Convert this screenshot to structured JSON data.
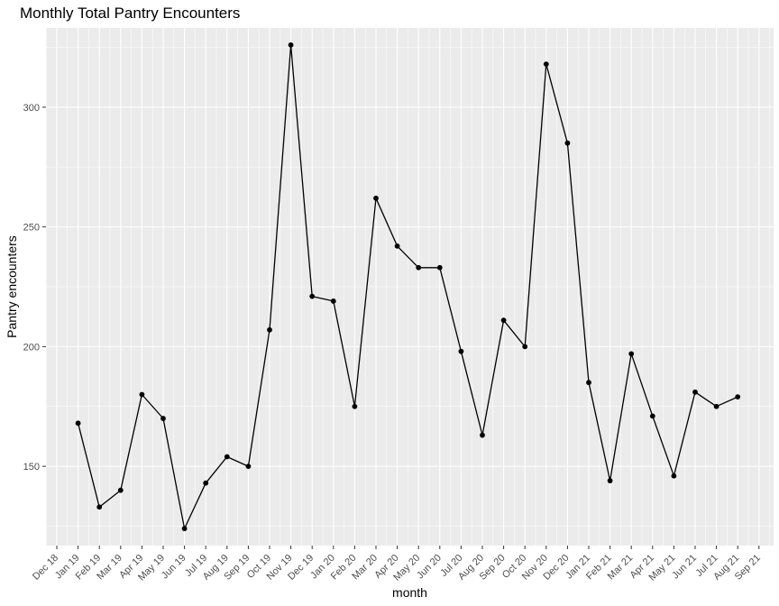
{
  "chart_data": {
    "type": "line",
    "title": "Monthly Total Pantry Encounters",
    "xlabel": "month",
    "ylabel": "Pantry encounters",
    "x_tick_labels": [
      "Dec 18",
      "Jan 19",
      "Feb 19",
      "Mar 19",
      "Apr 19",
      "May 19",
      "Jun 19",
      "Jul 19",
      "Aug 19",
      "Sep 19",
      "Oct 19",
      "Nov 19",
      "Dec 19",
      "Jan 20",
      "Feb 20",
      "Mar 20",
      "Apr 20",
      "May 20",
      "Jun 20",
      "Jul 20",
      "Aug 20",
      "Sep 20",
      "Oct 20",
      "Nov 20",
      "Dec 20",
      "Jan 21",
      "Feb 21",
      "Mar 21",
      "Apr 21",
      "May 21",
      "Jun 21",
      "Jul 21",
      "Aug 21",
      "Sep 21"
    ],
    "categories": [
      "Jan 19",
      "Feb 19",
      "Mar 19",
      "Apr 19",
      "May 19",
      "Jun 19",
      "Jul 19",
      "Aug 19",
      "Sep 19",
      "Oct 19",
      "Nov 19",
      "Dec 19",
      "Jan 20",
      "Feb 20",
      "Mar 20",
      "Apr 20",
      "May 20",
      "Jun 20",
      "Jul 20",
      "Aug 20",
      "Sep 20",
      "Oct 20",
      "Nov 20",
      "Dec 20",
      "Jan 21",
      "Feb 21",
      "Mar 21",
      "Apr 21",
      "May 21",
      "Jun 21",
      "Jul 21",
      "Aug 21"
    ],
    "values": [
      168,
      133,
      140,
      180,
      170,
      124,
      143,
      154,
      150,
      207,
      326,
      221,
      219,
      175,
      262,
      242,
      233,
      233,
      198,
      163,
      211,
      200,
      318,
      285,
      185,
      144,
      197,
      171,
      146,
      181,
      175,
      179
    ],
    "y_ticks": [
      150,
      200,
      250,
      300
    ],
    "ylim": [
      116.9,
      333.1
    ],
    "grid": true,
    "legend": "none",
    "colors": {
      "panel_background": "#EBEBEB",
      "grid": "#FFFFFF",
      "line": "#000000",
      "point": "#000000",
      "tick_label": "#4D4D4D"
    }
  }
}
